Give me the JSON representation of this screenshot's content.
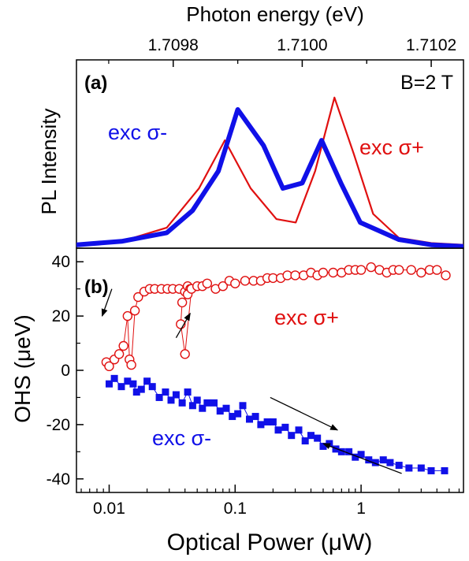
{
  "chart_data": [
    {
      "id": "a",
      "type": "line",
      "panel_label": "(a)",
      "annotation": "B=2 T",
      "xlabel": "Photon energy (eV)",
      "ylabel": "PL Intensity",
      "xlim": [
        1.70965,
        1.71025
      ],
      "ylim": [
        0,
        1.1
      ],
      "x_ticks": [
        "1.7098",
        "1.7100",
        "1.7102"
      ],
      "x_tick_values": [
        1.7098,
        1.71,
        1.7102
      ],
      "series": [
        {
          "name": "exc σ+",
          "color": "#e01010",
          "x": [
            1.70965,
            1.70972,
            1.70979,
            1.70984,
            1.70988,
            1.70992,
            1.70996,
            1.70999,
            1.71002,
            1.71005,
            1.71008,
            1.71011,
            1.71015,
            1.7102,
            1.71025
          ],
          "y": [
            0.02,
            0.04,
            0.12,
            0.35,
            0.63,
            0.35,
            0.17,
            0.15,
            0.45,
            0.88,
            0.55,
            0.2,
            0.06,
            0.03,
            0.02
          ]
        },
        {
          "name": "exc σ-",
          "color": "#1010e8",
          "x": [
            1.70965,
            1.70972,
            1.70979,
            1.70983,
            1.70987,
            1.7099,
            1.70994,
            1.70997,
            1.71,
            1.71003,
            1.71006,
            1.71009,
            1.71015,
            1.7102,
            1.71025
          ],
          "y": [
            0.02,
            0.04,
            0.09,
            0.22,
            0.45,
            0.81,
            0.6,
            0.35,
            0.38,
            0.63,
            0.38,
            0.15,
            0.05,
            0.02,
            0.01
          ]
        }
      ]
    },
    {
      "id": "b",
      "type": "scatter",
      "panel_label": "(b)",
      "xlabel": "Optical Power (μW)",
      "ylabel": "OHS (μeV)",
      "x_scale": "log",
      "xlim": [
        0.0055,
        6.5
      ],
      "ylim": [
        -45,
        45
      ],
      "x_ticks": [
        "0.01",
        "0.1",
        "1"
      ],
      "x_tick_values": [
        0.01,
        0.1,
        1
      ],
      "y_ticks": [
        "-40",
        "-20",
        "0",
        "20",
        "40"
      ],
      "y_tick_values": [
        -40,
        -20,
        0,
        20,
        40
      ],
      "series": [
        {
          "name": "exc σ+",
          "color": "#e01010",
          "marker": "open-circle",
          "x": [
            0.0095,
            0.01,
            0.011,
            0.012,
            0.013,
            0.014,
            0.0145,
            0.015,
            0.016,
            0.017,
            0.019,
            0.021,
            0.023,
            0.026,
            0.029,
            0.032,
            0.036,
            0.04,
            0.042,
            0.044,
            0.042,
            0.038,
            0.037,
            0.04,
            0.045,
            0.05,
            0.055,
            0.06,
            0.07,
            0.08,
            0.09,
            0.1,
            0.12,
            0.14,
            0.16,
            0.18,
            0.2,
            0.23,
            0.26,
            0.3,
            0.35,
            0.4,
            0.45,
            0.5,
            0.6,
            0.7,
            0.8,
            0.9,
            1.0,
            1.2,
            1.4,
            1.6,
            1.8,
            2.0,
            2.5,
            3.0,
            3.5,
            4.0,
            4.7
          ],
          "y": [
            3,
            1.5,
            4,
            6,
            9,
            20,
            4,
            2,
            22,
            27,
            29,
            30,
            30,
            30,
            30,
            30,
            30,
            29,
            31,
            30,
            28,
            25,
            17,
            6,
            30,
            31,
            31,
            32,
            30,
            31,
            33,
            32,
            33,
            33,
            33,
            34,
            34,
            34,
            35,
            35,
            35,
            36,
            35,
            36,
            36,
            36,
            37,
            37,
            37,
            38,
            37,
            36,
            37,
            37,
            37,
            36,
            37,
            37,
            35
          ]
        },
        {
          "name": "exc σ-",
          "color": "#1010e8",
          "marker": "filled-square",
          "x": [
            0.01,
            0.011,
            0.0125,
            0.014,
            0.0155,
            0.0165,
            0.018,
            0.02,
            0.022,
            0.025,
            0.028,
            0.031,
            0.034,
            0.038,
            0.042,
            0.046,
            0.05,
            0.055,
            0.06,
            0.068,
            0.076,
            0.085,
            0.095,
            0.105,
            0.115,
            0.13,
            0.145,
            0.16,
            0.18,
            0.2,
            0.22,
            0.25,
            0.28,
            0.32,
            0.36,
            0.4,
            0.45,
            0.5,
            0.56,
            0.63,
            0.7,
            0.8,
            0.9,
            1.0,
            1.15,
            1.3,
            1.5,
            1.7,
            2.0,
            2.4,
            3.0,
            3.6,
            4.6
          ],
          "y": [
            -5,
            -3,
            -6,
            -4,
            -5,
            -8,
            -7,
            -4,
            -6,
            -10,
            -8,
            -11,
            -9,
            -12,
            -8,
            -13,
            -11,
            -14,
            -12,
            -12,
            -15,
            -14,
            -17,
            -16,
            -13,
            -18,
            -17,
            -20,
            -19,
            -19,
            -22,
            -21,
            -24,
            -22,
            -26,
            -24,
            -25,
            -28,
            -27,
            -29,
            -30,
            -30,
            -32,
            -31,
            -33,
            -34,
            -33,
            -34,
            -35,
            -36,
            -36,
            -37,
            -37
          ]
        }
      ],
      "arrows": [
        {
          "from": [
            0.0105,
            30
          ],
          "to": [
            0.0088,
            20
          ]
        },
        {
          "from": [
            0.034,
            12
          ],
          "to": [
            0.044,
            21
          ]
        },
        {
          "from": [
            0.19,
            -10
          ],
          "to": [
            0.65,
            -22
          ]
        },
        {
          "from": [
            2.1,
            -38
          ],
          "to": [
            0.5,
            -27
          ]
        }
      ]
    }
  ]
}
